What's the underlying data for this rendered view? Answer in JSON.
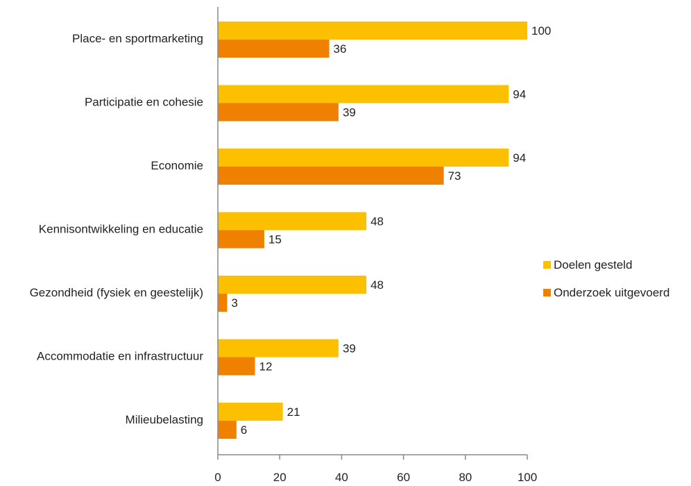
{
  "chart_data": {
    "type": "bar",
    "orientation": "horizontal",
    "categories": [
      "Place- en sportmarketing",
      "Participatie en cohesie",
      "Economie",
      "Kennisontwikkeling en educatie",
      "Gezondheid (fysiek en geestelijk)",
      "Accommodatie en infrastructuur",
      "Milieubelasting"
    ],
    "series": [
      {
        "name": "Doelen gesteld",
        "color": "#FDC000",
        "values": [
          100,
          94,
          94,
          48,
          48,
          39,
          21
        ]
      },
      {
        "name": "Onderzoek uitgevoerd",
        "color": "#F08000",
        "values": [
          36,
          39,
          73,
          15,
          3,
          12,
          6
        ]
      }
    ],
    "xlim": [
      0,
      100
    ],
    "xticks": [
      0,
      20,
      40,
      60,
      80,
      100
    ],
    "grid": false,
    "legend": "right",
    "title": "",
    "xlabel": "",
    "ylabel": ""
  }
}
